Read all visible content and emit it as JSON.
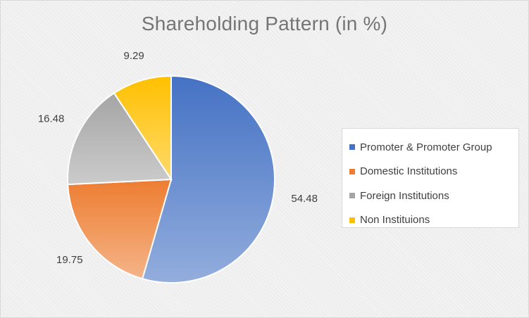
{
  "chart_data": {
    "type": "pie",
    "title": "Shareholding Pattern (in %)",
    "categories": [
      "Promoter & Promoter Group",
      "Domestic Institutions",
      "Foreign Institutions",
      "Non Instituions"
    ],
    "values": [
      54.48,
      19.75,
      16.48,
      9.29
    ],
    "value_labels": [
      "54.48",
      "19.75",
      "16.48",
      "9.29"
    ],
    "colors": [
      "#4472c4",
      "#ed7d31",
      "#a5a5a5",
      "#ffc000"
    ],
    "legend_position": "right",
    "start_angle": "12 o'clock, clockwise"
  }
}
